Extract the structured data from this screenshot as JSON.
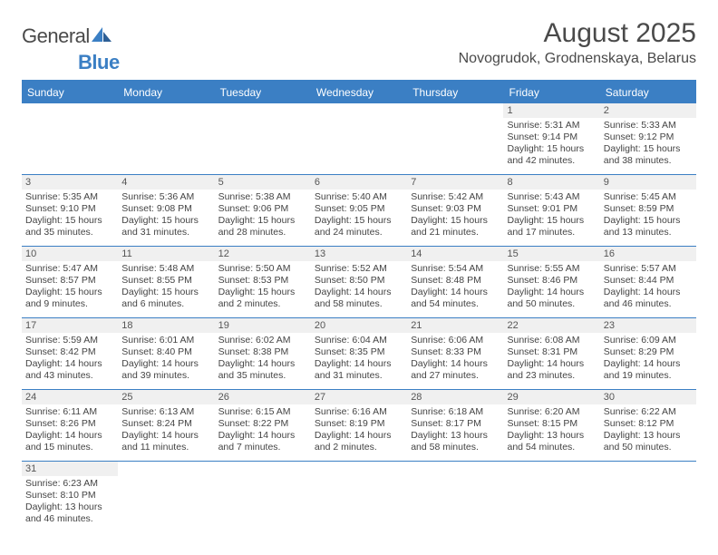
{
  "logo": {
    "dark": "General",
    "blue": "Blue"
  },
  "title": "August 2025",
  "location": "Novogrudok, Grodnenskaya, Belarus",
  "colors": {
    "header_bg": "#3b7fc4",
    "header_text": "#ffffff",
    "border": "#3b7fc4",
    "daynum_bg": "#f0f0f0",
    "text": "#444444"
  },
  "dayNames": [
    "Sunday",
    "Monday",
    "Tuesday",
    "Wednesday",
    "Thursday",
    "Friday",
    "Saturday"
  ],
  "weeks": [
    [
      null,
      null,
      null,
      null,
      null,
      {
        "n": "1",
        "sr": "Sunrise: 5:31 AM",
        "ss": "Sunset: 9:14 PM",
        "dl1": "Daylight: 15 hours",
        "dl2": "and 42 minutes."
      },
      {
        "n": "2",
        "sr": "Sunrise: 5:33 AM",
        "ss": "Sunset: 9:12 PM",
        "dl1": "Daylight: 15 hours",
        "dl2": "and 38 minutes."
      }
    ],
    [
      {
        "n": "3",
        "sr": "Sunrise: 5:35 AM",
        "ss": "Sunset: 9:10 PM",
        "dl1": "Daylight: 15 hours",
        "dl2": "and 35 minutes."
      },
      {
        "n": "4",
        "sr": "Sunrise: 5:36 AM",
        "ss": "Sunset: 9:08 PM",
        "dl1": "Daylight: 15 hours",
        "dl2": "and 31 minutes."
      },
      {
        "n": "5",
        "sr": "Sunrise: 5:38 AM",
        "ss": "Sunset: 9:06 PM",
        "dl1": "Daylight: 15 hours",
        "dl2": "and 28 minutes."
      },
      {
        "n": "6",
        "sr": "Sunrise: 5:40 AM",
        "ss": "Sunset: 9:05 PM",
        "dl1": "Daylight: 15 hours",
        "dl2": "and 24 minutes."
      },
      {
        "n": "7",
        "sr": "Sunrise: 5:42 AM",
        "ss": "Sunset: 9:03 PM",
        "dl1": "Daylight: 15 hours",
        "dl2": "and 21 minutes."
      },
      {
        "n": "8",
        "sr": "Sunrise: 5:43 AM",
        "ss": "Sunset: 9:01 PM",
        "dl1": "Daylight: 15 hours",
        "dl2": "and 17 minutes."
      },
      {
        "n": "9",
        "sr": "Sunrise: 5:45 AM",
        "ss": "Sunset: 8:59 PM",
        "dl1": "Daylight: 15 hours",
        "dl2": "and 13 minutes."
      }
    ],
    [
      {
        "n": "10",
        "sr": "Sunrise: 5:47 AM",
        "ss": "Sunset: 8:57 PM",
        "dl1": "Daylight: 15 hours",
        "dl2": "and 9 minutes."
      },
      {
        "n": "11",
        "sr": "Sunrise: 5:48 AM",
        "ss": "Sunset: 8:55 PM",
        "dl1": "Daylight: 15 hours",
        "dl2": "and 6 minutes."
      },
      {
        "n": "12",
        "sr": "Sunrise: 5:50 AM",
        "ss": "Sunset: 8:53 PM",
        "dl1": "Daylight: 15 hours",
        "dl2": "and 2 minutes."
      },
      {
        "n": "13",
        "sr": "Sunrise: 5:52 AM",
        "ss": "Sunset: 8:50 PM",
        "dl1": "Daylight: 14 hours",
        "dl2": "and 58 minutes."
      },
      {
        "n": "14",
        "sr": "Sunrise: 5:54 AM",
        "ss": "Sunset: 8:48 PM",
        "dl1": "Daylight: 14 hours",
        "dl2": "and 54 minutes."
      },
      {
        "n": "15",
        "sr": "Sunrise: 5:55 AM",
        "ss": "Sunset: 8:46 PM",
        "dl1": "Daylight: 14 hours",
        "dl2": "and 50 minutes."
      },
      {
        "n": "16",
        "sr": "Sunrise: 5:57 AM",
        "ss": "Sunset: 8:44 PM",
        "dl1": "Daylight: 14 hours",
        "dl2": "and 46 minutes."
      }
    ],
    [
      {
        "n": "17",
        "sr": "Sunrise: 5:59 AM",
        "ss": "Sunset: 8:42 PM",
        "dl1": "Daylight: 14 hours",
        "dl2": "and 43 minutes."
      },
      {
        "n": "18",
        "sr": "Sunrise: 6:01 AM",
        "ss": "Sunset: 8:40 PM",
        "dl1": "Daylight: 14 hours",
        "dl2": "and 39 minutes."
      },
      {
        "n": "19",
        "sr": "Sunrise: 6:02 AM",
        "ss": "Sunset: 8:38 PM",
        "dl1": "Daylight: 14 hours",
        "dl2": "and 35 minutes."
      },
      {
        "n": "20",
        "sr": "Sunrise: 6:04 AM",
        "ss": "Sunset: 8:35 PM",
        "dl1": "Daylight: 14 hours",
        "dl2": "and 31 minutes."
      },
      {
        "n": "21",
        "sr": "Sunrise: 6:06 AM",
        "ss": "Sunset: 8:33 PM",
        "dl1": "Daylight: 14 hours",
        "dl2": "and 27 minutes."
      },
      {
        "n": "22",
        "sr": "Sunrise: 6:08 AM",
        "ss": "Sunset: 8:31 PM",
        "dl1": "Daylight: 14 hours",
        "dl2": "and 23 minutes."
      },
      {
        "n": "23",
        "sr": "Sunrise: 6:09 AM",
        "ss": "Sunset: 8:29 PM",
        "dl1": "Daylight: 14 hours",
        "dl2": "and 19 minutes."
      }
    ],
    [
      {
        "n": "24",
        "sr": "Sunrise: 6:11 AM",
        "ss": "Sunset: 8:26 PM",
        "dl1": "Daylight: 14 hours",
        "dl2": "and 15 minutes."
      },
      {
        "n": "25",
        "sr": "Sunrise: 6:13 AM",
        "ss": "Sunset: 8:24 PM",
        "dl1": "Daylight: 14 hours",
        "dl2": "and 11 minutes."
      },
      {
        "n": "26",
        "sr": "Sunrise: 6:15 AM",
        "ss": "Sunset: 8:22 PM",
        "dl1": "Daylight: 14 hours",
        "dl2": "and 7 minutes."
      },
      {
        "n": "27",
        "sr": "Sunrise: 6:16 AM",
        "ss": "Sunset: 8:19 PM",
        "dl1": "Daylight: 14 hours",
        "dl2": "and 2 minutes."
      },
      {
        "n": "28",
        "sr": "Sunrise: 6:18 AM",
        "ss": "Sunset: 8:17 PM",
        "dl1": "Daylight: 13 hours",
        "dl2": "and 58 minutes."
      },
      {
        "n": "29",
        "sr": "Sunrise: 6:20 AM",
        "ss": "Sunset: 8:15 PM",
        "dl1": "Daylight: 13 hours",
        "dl2": "and 54 minutes."
      },
      {
        "n": "30",
        "sr": "Sunrise: 6:22 AM",
        "ss": "Sunset: 8:12 PM",
        "dl1": "Daylight: 13 hours",
        "dl2": "and 50 minutes."
      }
    ],
    [
      {
        "n": "31",
        "sr": "Sunrise: 6:23 AM",
        "ss": "Sunset: 8:10 PM",
        "dl1": "Daylight: 13 hours",
        "dl2": "and 46 minutes."
      },
      null,
      null,
      null,
      null,
      null,
      null
    ]
  ]
}
